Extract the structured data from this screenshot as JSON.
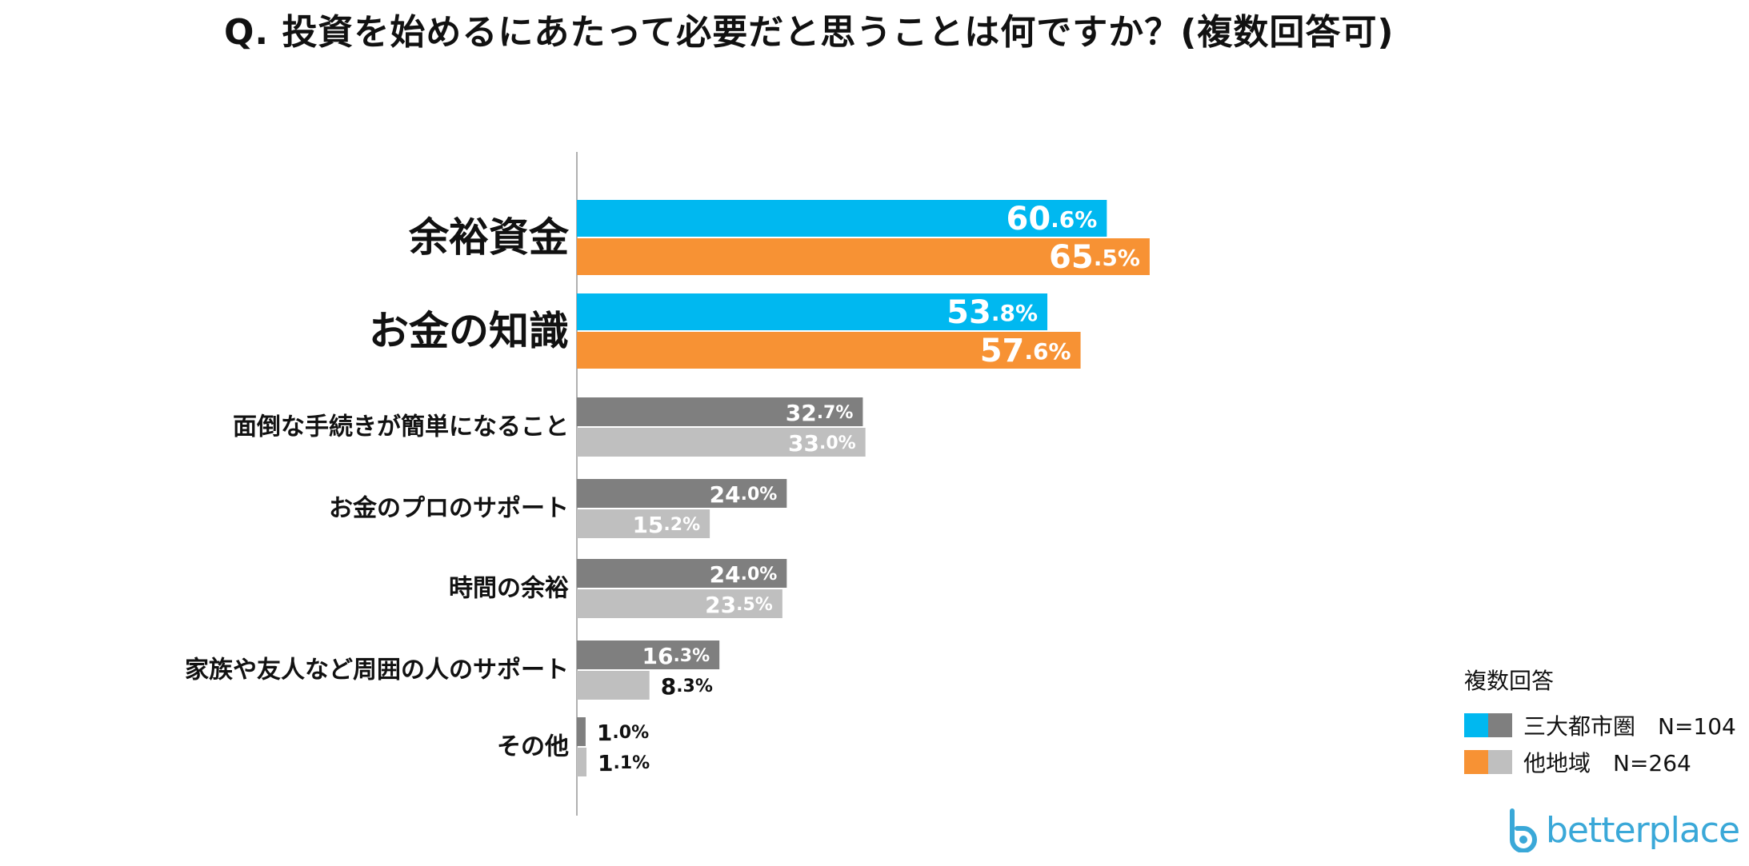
{
  "title": "Q. 投資を始めるにあたって必要だと思うことは何ですか？(複数回答可)",
  "colors": {
    "metro_highlight": "#00b8f0",
    "other_highlight": "#f79234",
    "metro_gray": "#7f7f7f",
    "other_gray": "#bfbfbf"
  },
  "chart_data": {
    "type": "bar",
    "orientation": "horizontal",
    "categories": [
      "余裕資金",
      "お金の知識",
      "面倒な手続きが簡単になること",
      "お金のプロのサポート",
      "時間の余裕",
      "家族や友人など周囲の人のサポート",
      "その他"
    ],
    "highlighted_categories": [
      "余裕資金",
      "お金の知識"
    ],
    "series": [
      {
        "name": "三大都市圏　N=104",
        "values": [
          60.6,
          53.8,
          32.7,
          24.0,
          24.0,
          16.3,
          1.0
        ]
      },
      {
        "name": "他地域　N=264",
        "values": [
          65.5,
          57.6,
          33.0,
          15.2,
          23.5,
          8.3,
          1.1
        ]
      }
    ],
    "value_suffix": "%",
    "legend_title": "複数回答",
    "legend_position": "bottom-right"
  },
  "legend": {
    "title": "複数回答",
    "items": [
      {
        "label": "三大都市圏　N=104"
      },
      {
        "label": "他地域　N=264"
      }
    ]
  },
  "logo": {
    "text": "betterplace"
  }
}
